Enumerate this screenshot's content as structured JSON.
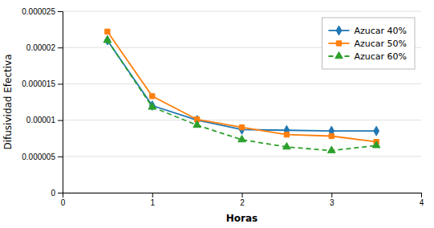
{
  "chart_data": {
    "type": "line",
    "xlabel": "Horas",
    "ylabel": "Difusividad Efectiva",
    "x": [
      0.5,
      1.0,
      1.5,
      2.0,
      2.5,
      3.0,
      3.5
    ],
    "xlim": [
      0,
      4
    ],
    "xticks": [
      0,
      1,
      2,
      3,
      4
    ],
    "ylim": [
      0,
      2.5e-05
    ],
    "yticks": [
      0,
      {
        "value": 5e-06,
        "label": "0.000005"
      },
      {
        "value": 1e-05,
        "label": "0.00001"
      },
      {
        "value": 1.5e-05,
        "label": "0.000015"
      },
      {
        "value": 2e-05,
        "label": "0.00002"
      },
      {
        "value": 2.5e-05,
        "label": "0.000025"
      }
    ],
    "grid": "y",
    "legend": "upper-right",
    "series": [
      {
        "name": "Azucar 40%",
        "marker": "diamond",
        "line_style": "solid",
        "values": [
          2.1e-05,
          1.2e-05,
          1e-05,
          8.7e-06,
          8.6e-06,
          8.5e-06,
          8.5e-06
        ]
      },
      {
        "name": "Azucar 50%",
        "marker": "square",
        "line_style": "solid",
        "values": [
          2.22e-05,
          1.33e-05,
          1.01e-05,
          9e-06,
          8e-06,
          7.8e-06,
          7e-06
        ]
      },
      {
        "name": "Azucar 60%",
        "marker": "triangle",
        "line_style": "dashed",
        "values": [
          2.1e-05,
          1.18e-05,
          9.3e-06,
          7.3e-06,
          6.3e-06,
          5.8e-06,
          6.5e-06
        ]
      }
    ]
  }
}
